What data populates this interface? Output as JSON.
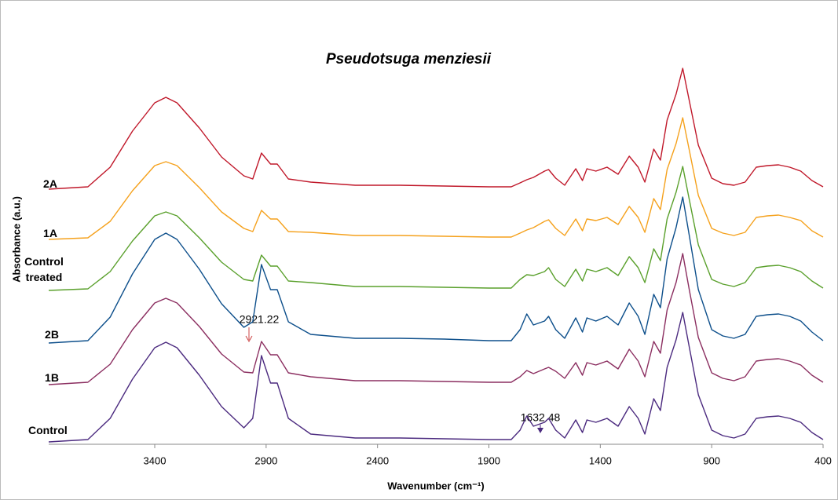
{
  "chart_data": {
    "type": "line",
    "title": "Pseudotsuga menziesii",
    "xlabel": "Wavenumber (cm⁻¹)",
    "ylabel": "Absorbance (a.u.)",
    "xlim": [
      3876,
      400
    ],
    "xticks": [
      3400,
      2900,
      2400,
      1900,
      1400,
      900,
      400
    ],
    "ylim": [
      0,
      552
    ],
    "x": [
      3876,
      3700,
      3600,
      3500,
      3400,
      3350,
      3300,
      3200,
      3100,
      3000,
      2960,
      2921,
      2880,
      2850,
      2800,
      2700,
      2500,
      2300,
      2100,
      1900,
      1800,
      1760,
      1730,
      1700,
      1650,
      1632,
      1600,
      1560,
      1510,
      1480,
      1460,
      1420,
      1370,
      1320,
      1270,
      1230,
      1200,
      1160,
      1130,
      1100,
      1060,
      1030,
      1000,
      960,
      900,
      850,
      800,
      750,
      700,
      650,
      600,
      550,
      500,
      450,
      400
    ],
    "series": [
      {
        "name": "2A",
        "color": "#c0182a",
        "values": [
          325,
          328,
          353,
          399,
          435,
          442,
          435,
          403,
          366,
          342,
          338,
          371,
          357,
          357,
          338,
          334,
          330,
          330,
          329,
          328,
          328,
          333,
          337,
          340,
          348,
          350,
          339,
          330,
          351,
          336,
          351,
          348,
          353,
          344,
          367,
          353,
          334,
          376,
          362,
          413,
          446,
          479,
          437,
          381,
          339,
          332,
          330,
          334,
          353,
          355,
          356,
          353,
          348,
          336,
          328
        ]
      },
      {
        "name": "1A",
        "color": "#f5a11c",
        "values": [
          261,
          263,
          284,
          323,
          355,
          360,
          355,
          327,
          296,
          275,
          271,
          298,
          287,
          287,
          271,
          270,
          266,
          266,
          265,
          264,
          264,
          269,
          273,
          276,
          284,
          286,
          275,
          266,
          287,
          272,
          287,
          285,
          289,
          280,
          303,
          289,
          270,
          313,
          299,
          350,
          383,
          416,
          374,
          317,
          275,
          269,
          266,
          270,
          289,
          291,
          292,
          289,
          285,
          272,
          264
        ]
      },
      {
        "name": "Control treated",
        "color": "#5aa02c",
        "values": [
          196,
          198,
          220,
          259,
          291,
          296,
          291,
          263,
          232,
          210,
          208,
          241,
          227,
          227,
          208,
          206,
          201,
          201,
          200,
          199,
          199,
          210,
          216,
          215,
          220,
          225,
          210,
          201,
          223,
          208,
          223,
          220,
          225,
          215,
          239,
          225,
          206,
          249,
          234,
          287,
          321,
          354,
          311,
          254,
          210,
          204,
          201,
          206,
          225,
          227,
          228,
          225,
          220,
          208,
          199
        ]
      },
      {
        "name": "2B",
        "color": "#0d4f8b",
        "values": [
          129,
          132,
          162,
          217,
          261,
          269,
          261,
          223,
          179,
          149,
          156,
          229,
          197,
          197,
          156,
          140,
          135,
          135,
          134,
          132,
          132,
          146,
          166,
          152,
          157,
          163,
          146,
          135,
          161,
          143,
          161,
          157,
          163,
          152,
          180,
          163,
          140,
          191,
          174,
          236,
          276,
          315,
          265,
          197,
          146,
          138,
          135,
          140,
          163,
          165,
          166,
          163,
          157,
          143,
          132
        ]
      },
      {
        "name": "1B",
        "color": "#8b2e60",
        "values": [
          76,
          79,
          102,
          146,
          180,
          186,
          180,
          150,
          115,
          92,
          91,
          131,
          114,
          114,
          91,
          86,
          81,
          81,
          80,
          79,
          79,
          86,
          94,
          90,
          96,
          98,
          93,
          84,
          104,
          88,
          104,
          101,
          106,
          96,
          121,
          106,
          86,
          131,
          116,
          171,
          206,
          243,
          196,
          136,
          91,
          84,
          81,
          86,
          106,
          108,
          109,
          106,
          101,
          88,
          79
        ]
      },
      {
        "name": "Control",
        "color": "#4b2a7f",
        "values": [
          3,
          6,
          33,
          83,
          123,
          130,
          123,
          88,
          48,
          21,
          33,
          113,
          78,
          78,
          33,
          13,
          8,
          8,
          7,
          6,
          6,
          18,
          36,
          23,
          28,
          33,
          18,
          8,
          31,
          15,
          31,
          28,
          33,
          23,
          48,
          33,
          13,
          58,
          43,
          98,
          133,
          168,
          123,
          63,
          18,
          11,
          8,
          13,
          33,
          35,
          36,
          33,
          28,
          15,
          6
        ]
      }
    ],
    "annotations": [
      {
        "text": "2921.22"
      },
      {
        "text": "1632.48"
      }
    ]
  }
}
